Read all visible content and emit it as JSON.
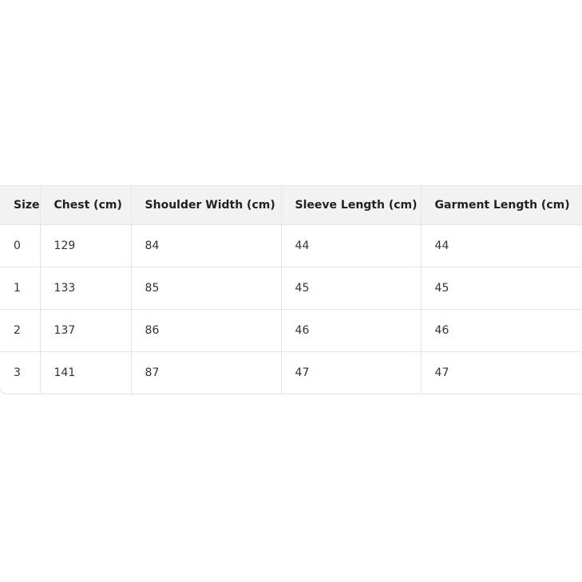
{
  "table": {
    "headers": [
      "Size",
      "Chest (cm)",
      "Shoulder Width (cm)",
      "Sleeve Length (cm)",
      "Garment Length (cm)"
    ],
    "rows": [
      [
        "0",
        "129",
        "84",
        "44",
        "44"
      ],
      [
        "1",
        "133",
        "85",
        "45",
        "45"
      ],
      [
        "2",
        "137",
        "86",
        "46",
        "46"
      ],
      [
        "3",
        "141",
        "87",
        "47",
        "47"
      ]
    ]
  }
}
